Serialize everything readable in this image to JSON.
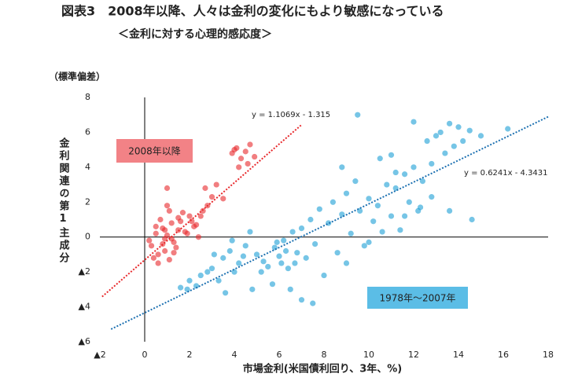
{
  "chart_data": {
    "type": "scatter",
    "title": "図表3　2008年以降、人々は金利の変化にもより敏感になっている",
    "subtitle": "＜金利に対する心理的感応度＞",
    "y_unit_label": "（標準偏差）",
    "ylabel": "金利関連の第1主成分",
    "xlabel": "市場金利(米国債利回り、3年、%)",
    "xlim": [
      -2,
      18
    ],
    "ylim": [
      -6,
      8
    ],
    "xticks": [
      {
        "value": -2,
        "label": "▲2"
      },
      0,
      2,
      4,
      6,
      8,
      10,
      12,
      14,
      16,
      18
    ],
    "yticks": [
      {
        "value": -6,
        "label": "▲6"
      },
      {
        "value": -4,
        "label": "▲4"
      },
      {
        "value": -2,
        "label": "▲2"
      },
      0,
      2,
      4,
      6,
      8
    ],
    "series": [
      {
        "name": "2008年以降",
        "color": "#e8282b",
        "legend_color": "#f28286",
        "x": [
          0.3,
          0.5,
          0.6,
          0.8,
          0.9,
          1.0,
          1.1,
          1.2,
          1.3,
          1.5,
          0.4,
          0.7,
          0.9,
          1.1,
          1.4,
          1.6,
          1.8,
          2.0,
          2.2,
          2.4,
          0.5,
          0.8,
          1.0,
          1.3,
          1.7,
          1.9,
          2.1,
          2.5,
          2.8,
          3.0,
          0.2,
          0.6,
          0.9,
          1.2,
          1.5,
          2.3,
          2.7,
          3.2,
          3.5,
          2.6,
          3.9,
          4.1,
          4.3,
          4.5,
          4.7,
          4.9,
          4.2,
          4.6,
          4.0,
          1.0
        ],
        "values": [
          -0.5,
          0.2,
          -1.0,
          0.5,
          -0.8,
          0.1,
          -1.3,
          0.8,
          -0.3,
          0.4,
          -1.2,
          1.0,
          -0.1,
          1.5,
          -0.6,
          0.9,
          0.3,
          1.2,
          0.6,
          0.0,
          0.6,
          -0.4,
          1.8,
          -0.9,
          1.4,
          0.2,
          0.9,
          1.2,
          1.8,
          2.3,
          -0.2,
          -1.5,
          0.4,
          -0.1,
          1.1,
          0.7,
          2.8,
          3.0,
          2.2,
          1.5,
          4.8,
          5.1,
          4.5,
          4.9,
          5.3,
          4.6,
          4.0,
          4.2,
          5.0,
          2.8
        ]
      },
      {
        "name": "1978年～2007年",
        "color": "#1a9fd6",
        "legend_color": "#5bbde6",
        "x": [
          2.0,
          2.3,
          2.5,
          3.0,
          3.3,
          3.5,
          3.8,
          4.0,
          4.2,
          4.5,
          4.7,
          5.0,
          5.2,
          5.5,
          5.8,
          6.0,
          6.2,
          6.4,
          6.6,
          6.8,
          7.0,
          7.2,
          7.4,
          7.6,
          7.8,
          8.0,
          8.2,
          8.4,
          8.6,
          8.8,
          9.0,
          9.2,
          9.4,
          9.6,
          9.8,
          10.0,
          10.2,
          10.4,
          10.6,
          10.8,
          11.0,
          11.2,
          11.4,
          11.6,
          11.8,
          12.0,
          12.2,
          12.4,
          12.6,
          12.8,
          13.0,
          13.2,
          13.4,
          13.6,
          13.8,
          14.0,
          14.2,
          14.5,
          15.0,
          16.2,
          9.5,
          12.0,
          7.0,
          7.5,
          6.5,
          4.8,
          3.6,
          5.7,
          8.8,
          10.5,
          11.0,
          11.6,
          12.3,
          12.8,
          13.6,
          14.6,
          9.0,
          10.0,
          11.2,
          1.9,
          5.3,
          5.9,
          6.1,
          6.3,
          6.7,
          4.4,
          3.9,
          2.8,
          3.1,
          1.6
        ],
        "values": [
          -2.5,
          -2.8,
          -2.2,
          -1.8,
          -2.5,
          -1.2,
          -0.8,
          -2.0,
          -1.5,
          -0.5,
          0.3,
          -1.0,
          -2.0,
          -1.7,
          -0.6,
          -1.1,
          -0.2,
          -1.8,
          0.3,
          -0.9,
          0.5,
          -1.2,
          1.0,
          -0.4,
          1.6,
          -2.2,
          0.8,
          2.0,
          -0.9,
          1.3,
          2.5,
          0.2,
          3.2,
          1.5,
          -0.5,
          2.2,
          0.9,
          1.8,
          0.3,
          3.0,
          1.2,
          2.8,
          0.4,
          3.6,
          2.0,
          4.0,
          1.5,
          3.2,
          5.5,
          4.2,
          5.8,
          6.0,
          4.8,
          6.5,
          5.2,
          6.3,
          5.5,
          6.1,
          5.8,
          6.2,
          7.0,
          6.6,
          -3.6,
          -3.8,
          -3.0,
          -3.0,
          -3.2,
          -2.7,
          4.0,
          4.5,
          4.7,
          1.2,
          1.7,
          2.3,
          1.5,
          1.0,
          -1.5,
          -0.3,
          3.7,
          -3.0,
          -1.4,
          -0.3,
          -1.5,
          -0.8,
          -1.5,
          -1.1,
          -0.2,
          -2.0,
          -1.0,
          -2.9
        ]
      }
    ],
    "trendlines": [
      {
        "label": "y = 1.1069x - 1.315",
        "slope": 1.1069,
        "intercept": -1.315,
        "x_range": [
          -1.9,
          7
        ],
        "color": "#e8282b"
      },
      {
        "label": "y = 0.6241x - 4.3431",
        "slope": 0.6241,
        "intercept": -4.3431,
        "x_range": [
          -1.5,
          18
        ],
        "color": "#1a6fb0"
      }
    ]
  }
}
